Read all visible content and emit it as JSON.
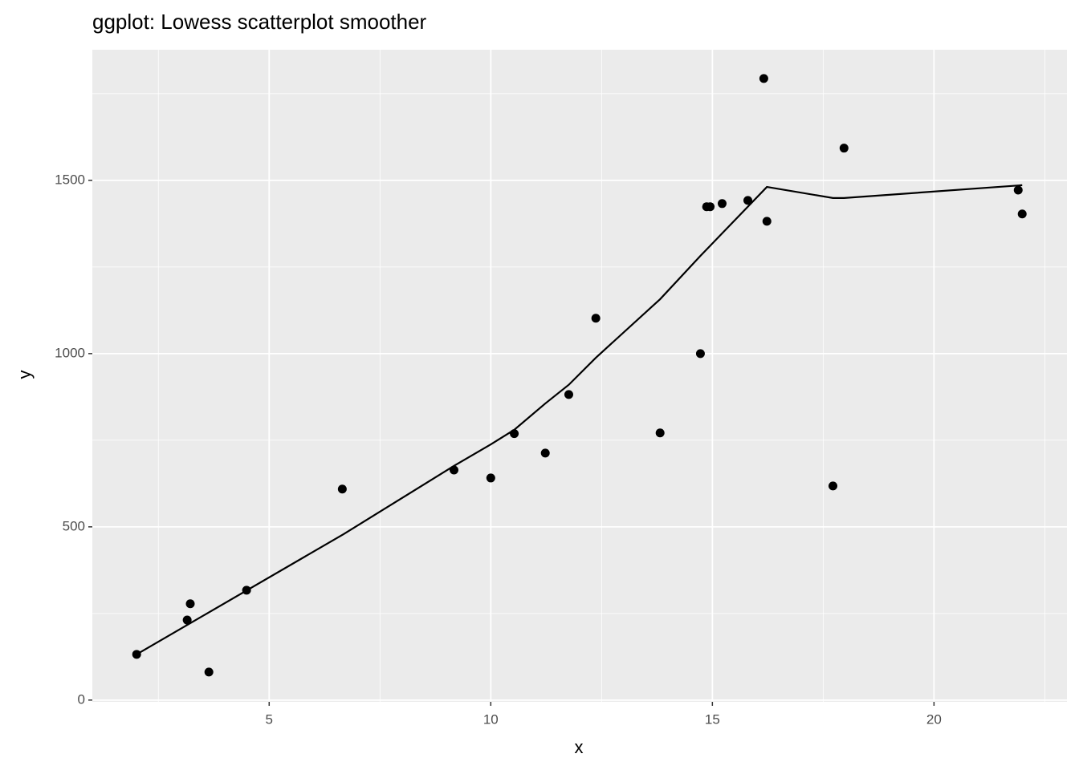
{
  "chart_data": {
    "type": "scatter",
    "title": "ggplot: Lowess scatterplot smoother",
    "x_label": "x",
    "y_label": "y",
    "series": [
      {
        "type": "scatter",
        "color": "#000000",
        "x": [
          2.01,
          3.15,
          3.22,
          3.64,
          4.49,
          6.65,
          9.17,
          10.0,
          10.53,
          11.23,
          11.76,
          12.37,
          13.82,
          14.73,
          14.87,
          14.95,
          15.22,
          15.8,
          16.16,
          16.23,
          17.72,
          17.97,
          21.9,
          21.99
        ],
        "values": [
          132,
          231,
          278,
          81,
          317,
          609,
          664,
          641,
          769,
          713,
          882,
          1102,
          771,
          1000,
          1424,
          1424,
          1433,
          1442,
          1794,
          1382,
          618,
          1593,
          1472,
          1403
        ]
      },
      {
        "type": "line",
        "color": "#000000",
        "x": [
          2.01,
          6.68,
          9.17,
          10.0,
          10.53,
          11.23,
          11.76,
          12.37,
          13.82,
          14.73,
          16.23,
          17.72,
          17.97,
          21.99
        ],
        "values": [
          132,
          479,
          676,
          738,
          780,
          856,
          910,
          988,
          1157,
          1282,
          1481,
          1449,
          1449,
          1486
        ]
      }
    ],
    "xlim": [
      1.01,
      23.0
    ],
    "ylim": [
      -5,
      1877
    ],
    "xticks": [
      5,
      10,
      15,
      20
    ],
    "yticks": [
      0,
      500,
      1000,
      1500
    ],
    "grid": true
  }
}
